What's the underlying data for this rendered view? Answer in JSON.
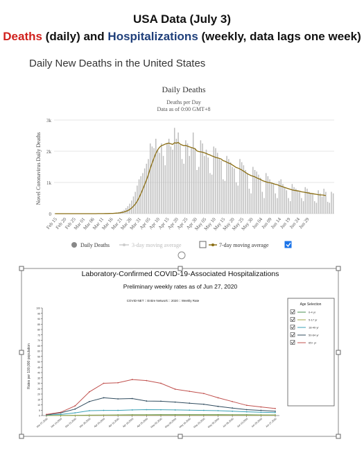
{
  "header": {
    "title": "USA Data (July 3)",
    "deaths_word": "Deaths",
    "daily_word": " (daily) and ",
    "hosp_word": "Hospitalizations",
    "weekly_note": " (weekly, data lags one week)"
  },
  "section_title": "Daily New Deaths in the United States",
  "colors": {
    "deaths_word": "#d0201c",
    "hosp_word": "#1f3f7a",
    "bars": "#bdbdbd",
    "moving_avg": "#8a6d12"
  },
  "chart_data": [
    {
      "type": "bar",
      "title": "Daily Deaths",
      "subtitle": "Deaths per Day",
      "subtitle2": "Data as of 0:00 GMT+8",
      "ylabel": "Novel Coronavirus Daily Deaths",
      "ylim": [
        0,
        3000
      ],
      "yticks": [
        0,
        1000,
        2000,
        3000
      ],
      "ytick_labels": [
        "0",
        "1k",
        "2k",
        "3k"
      ],
      "grid": true,
      "xtick_labels": [
        "Feb 15",
        "Feb 20",
        "Feb 25",
        "Mar 01",
        "Mar 06",
        "Mar 11",
        "Mar 16",
        "Mar 21",
        "Mar 26",
        "Mar 31",
        "Apr 05",
        "Apr 10",
        "Apr 15",
        "Apr 20",
        "Apr 25",
        "Apr 30",
        "May 05",
        "May 10",
        "May 15",
        "May 20",
        "May 25",
        "May 30",
        "Jun 04",
        "Jun 09",
        "Jun 14",
        "Jun 19",
        "Jun 24",
        "Jun 29"
      ],
      "legend": [
        {
          "name": "Daily Deaths",
          "checked": null
        },
        {
          "name": "3-day moving average",
          "checked": false
        },
        {
          "name": "7-day moving average",
          "checked": true
        }
      ],
      "x_start": "Feb 15",
      "values": [
        0,
        0,
        0,
        0,
        0,
        0,
        0,
        0,
        0,
        0,
        0,
        0,
        0,
        0,
        0,
        1,
        0,
        0,
        1,
        1,
        1,
        2,
        2,
        3,
        4,
        5,
        6,
        7,
        8,
        10,
        12,
        15,
        20,
        30,
        45,
        60,
        90,
        120,
        180,
        240,
        320,
        420,
        550,
        700,
        900,
        1100,
        1200,
        1300,
        1450,
        1600,
        1750,
        2250,
        2150,
        2100,
        2400,
        2050,
        1950,
        2250,
        1850,
        1550,
        2250,
        2400,
        2150,
        2050,
        2750,
        2400,
        2600,
        2200,
        1750,
        1600,
        2350,
        2250,
        1850,
        2100,
        2600,
        2100,
        1400,
        1500,
        2350,
        2250,
        1850,
        2050,
        1800,
        1300,
        1250,
        2150,
        2100,
        1950,
        1750,
        1700,
        1100,
        1050,
        1850,
        1750,
        1650,
        1500,
        1450,
        1000,
        900,
        1750,
        1650,
        1550,
        1400,
        1300,
        800,
        650,
        1500,
        1400,
        1350,
        1250,
        1150,
        700,
        500,
        1300,
        1200,
        1100,
        1000,
        950,
        650,
        500,
        1050,
        1100,
        950,
        850,
        750,
        500,
        400,
        950,
        850,
        800,
        750,
        700,
        500,
        400,
        850,
        800,
        700,
        650,
        650,
        400,
        350,
        750,
        650,
        550,
        800,
        700,
        380,
        350,
        700,
        650
      ],
      "moving_avg_7": [
        0,
        0,
        0,
        0,
        0,
        0,
        0,
        0,
        0,
        0,
        0,
        0,
        0,
        0,
        0,
        0,
        0,
        0,
        0,
        0,
        1,
        1,
        1,
        2,
        2,
        3,
        3,
        4,
        5,
        6,
        8,
        10,
        13,
        17,
        23,
        30,
        40,
        55,
        75,
        100,
        135,
        180,
        240,
        310,
        400,
        510,
        640,
        780,
        930,
        1080,
        1250,
        1450,
        1620,
        1780,
        1930,
        2050,
        2130,
        2180,
        2200,
        2230,
        2250,
        2260,
        2240,
        2220,
        2270,
        2260,
        2280,
        2230,
        2200,
        2180,
        2190,
        2160,
        2140,
        2120,
        2100,
        2080,
        2010,
        1990,
        1980,
        1970,
        1950,
        1930,
        1900,
        1880,
        1850,
        1830,
        1800,
        1790,
        1770,
        1750,
        1700,
        1680,
        1650,
        1620,
        1600,
        1560,
        1520,
        1480,
        1460,
        1430,
        1400,
        1360,
        1320,
        1280,
        1250,
        1220,
        1200,
        1180,
        1150,
        1120,
        1100,
        1060,
        1040,
        1020,
        1000,
        990,
        980,
        960,
        940,
        930,
        900,
        880,
        860,
        840,
        820,
        800,
        780,
        760,
        750,
        740,
        730,
        720,
        700,
        690,
        680,
        670,
        660,
        650,
        640,
        630,
        620,
        610,
        600,
        600,
        590,
        580
      ]
    },
    {
      "type": "line",
      "title": "Laboratory-Confirmed COVID-19-Associated Hospitalizations",
      "subtitle": "Preliminary weekly rates as of Jun 27, 2020",
      "network_label": "COVID-NET :: Entire Network :: 2020 :: Weekly Rate",
      "ylabel": "Rates per 100,000 population",
      "ylim": [
        0,
        100
      ],
      "yticks": [
        0,
        5,
        10,
        15,
        20,
        25,
        30,
        35,
        40,
        45,
        50,
        55,
        60,
        65,
        70,
        75,
        80,
        85,
        90,
        95,
        100
      ],
      "x": [
        "Mar 07,2020",
        "Mar 14,2020",
        "Mar 21,2020",
        "Mar 28,2020",
        "Apr 04,2020",
        "Apr 11,2020",
        "Apr 18,2020",
        "Apr 25,2020",
        "May 02,2020",
        "May 09,2020",
        "May 16,2020",
        "May 23,2020",
        "May 30,2020",
        "Jun 06,2020",
        "Jun 13,2020",
        "Jun 20,2020",
        "Jun 27,2020"
      ],
      "legend_title": "Age Selection",
      "series": [
        {
          "name": "0-4 yr",
          "color": "#4a8f52",
          "values": [
            0,
            0.1,
            0.2,
            0.4,
            0.5,
            0.6,
            0.7,
            0.7,
            0.8,
            0.8,
            0.8,
            0.8,
            0.8,
            0.7,
            0.7,
            0.6,
            0.6
          ]
        },
        {
          "name": "5-17 yr",
          "color": "#a2a84a",
          "values": [
            0,
            0,
            0.1,
            0.2,
            0.3,
            0.3,
            0.4,
            0.4,
            0.4,
            0.4,
            0.4,
            0.4,
            0.4,
            0.4,
            0.3,
            0.3,
            0.3
          ]
        },
        {
          "name": "18-49 yr",
          "color": "#3aa0b5",
          "values": [
            0.5,
            1,
            2.5,
            4.5,
            4.8,
            4.8,
            5.2,
            5.5,
            5.4,
            5.2,
            5.0,
            4.8,
            4.5,
            4.0,
            3.5,
            3.0,
            2.8
          ]
        },
        {
          "name": "50-64 yr",
          "color": "#2f4b5e",
          "values": [
            0.8,
            2.5,
            6,
            13,
            16.5,
            15.5,
            15.8,
            13.5,
            13.3,
            12.5,
            11.5,
            10.5,
            8.5,
            7.0,
            5.5,
            4.8,
            4.0
          ]
        },
        {
          "name": "65+ yr",
          "color": "#c0504d",
          "values": [
            1,
            3,
            9,
            22,
            30,
            30.5,
            33.5,
            32.5,
            30,
            24.5,
            22.5,
            20.5,
            16.5,
            13,
            9.5,
            8,
            6.5
          ]
        }
      ]
    }
  ]
}
